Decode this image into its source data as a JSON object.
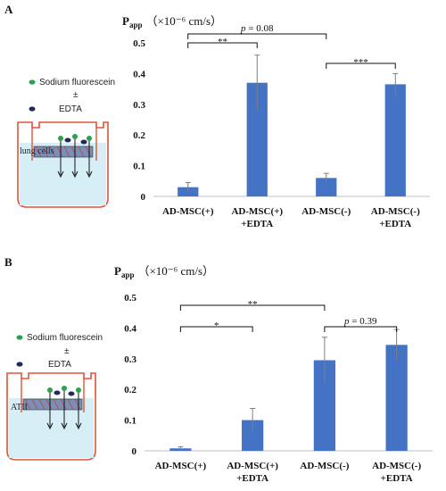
{
  "figure": {
    "panelA": {
      "label": "A",
      "legend": {
        "item1": "Sodium fluorescein",
        "plusminus": "±",
        "item2": "EDTA"
      },
      "well_label": "lung cells",
      "ytitle": {
        "main": "P",
        "sub": "app",
        "units": "（×10⁻⁶ cm/s）"
      },
      "significance": [
        {
          "from": 0,
          "to": 1,
          "text": "**"
        },
        {
          "from": 0,
          "to": 2,
          "text": "p = 0.08"
        },
        {
          "from": 2,
          "to": 3,
          "text": "***"
        }
      ]
    },
    "panelB": {
      "label": "B",
      "legend": {
        "item1": "Sodium fluorescein",
        "plusminus": "±",
        "item2": "EDTA"
      },
      "well_label": "ATII",
      "ytitle": {
        "main": "P",
        "sub": "app",
        "units": "（×10⁻⁶ cm/s）"
      },
      "significance": [
        {
          "from": 0,
          "to": 1,
          "text": "*"
        },
        {
          "from": 0,
          "to": 2,
          "text": "**"
        },
        {
          "from": 2,
          "to": 3,
          "text": "p = 0.39"
        }
      ]
    }
  },
  "chart_data": [
    {
      "type": "bar",
      "panel": "A",
      "categories": [
        [
          "AD-MSC(+)"
        ],
        [
          "AD-MSC(+)",
          "+EDTA"
        ],
        [
          "AD-MSC(-)"
        ],
        [
          "AD-MSC(-)",
          "+EDTA"
        ]
      ],
      "values": [
        0.03,
        0.37,
        0.06,
        0.365
      ],
      "errors": [
        0.015,
        0.09,
        0.015,
        0.035
      ],
      "ylim": [
        0,
        0.5
      ],
      "yticks": [
        "0",
        "0.1",
        "0.2",
        "0.3",
        "0.4",
        "0.5"
      ],
      "ylabel": "Papp （×10⁻⁶ cm/s）",
      "color": "#4472C4"
    },
    {
      "type": "bar",
      "panel": "B",
      "categories": [
        [
          "AD-MSC(+)"
        ],
        [
          "AD-MSC(+)",
          "+EDTA"
        ],
        [
          "AD-MSC(-)"
        ],
        [
          "AD-MSC(-)",
          "+EDTA"
        ]
      ],
      "values": [
        0.008,
        0.1,
        0.295,
        0.345
      ],
      "errors": [
        0.005,
        0.038,
        0.075,
        0.05
      ],
      "ylim": [
        0,
        0.5
      ],
      "yticks": [
        "0",
        "0.1",
        "0.2",
        "0.3",
        "0.4",
        "0.5"
      ],
      "ylabel": "Papp （×10⁻⁶ cm/s）",
      "color": "#4472C4"
    }
  ]
}
